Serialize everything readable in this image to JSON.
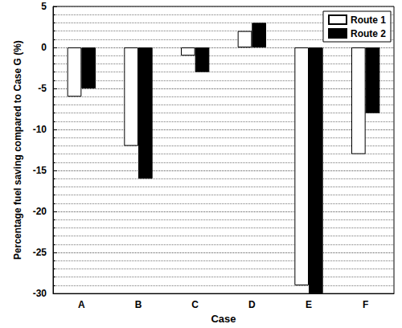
{
  "chart_data": {
    "type": "bar",
    "x_label": "Case",
    "y_label": "Percentage fuel saving compared to Case G (%)",
    "categories": [
      "A",
      "B",
      "C",
      "D",
      "E",
      "F"
    ],
    "series": [
      {
        "name": "Route 1",
        "color": "#ffffff",
        "values": [
          -6,
          -12,
          -1,
          2,
          -29,
          -13
        ]
      },
      {
        "name": "Route 2",
        "color": "#000000",
        "values": [
          -5,
          -16,
          -3,
          3,
          -30,
          -8
        ]
      }
    ],
    "ylim": [
      -30,
      5
    ],
    "yticks": [
      -30,
      -25,
      -20,
      -15,
      -10,
      -5,
      0,
      5
    ],
    "grid": true,
    "legend": "upper right"
  }
}
